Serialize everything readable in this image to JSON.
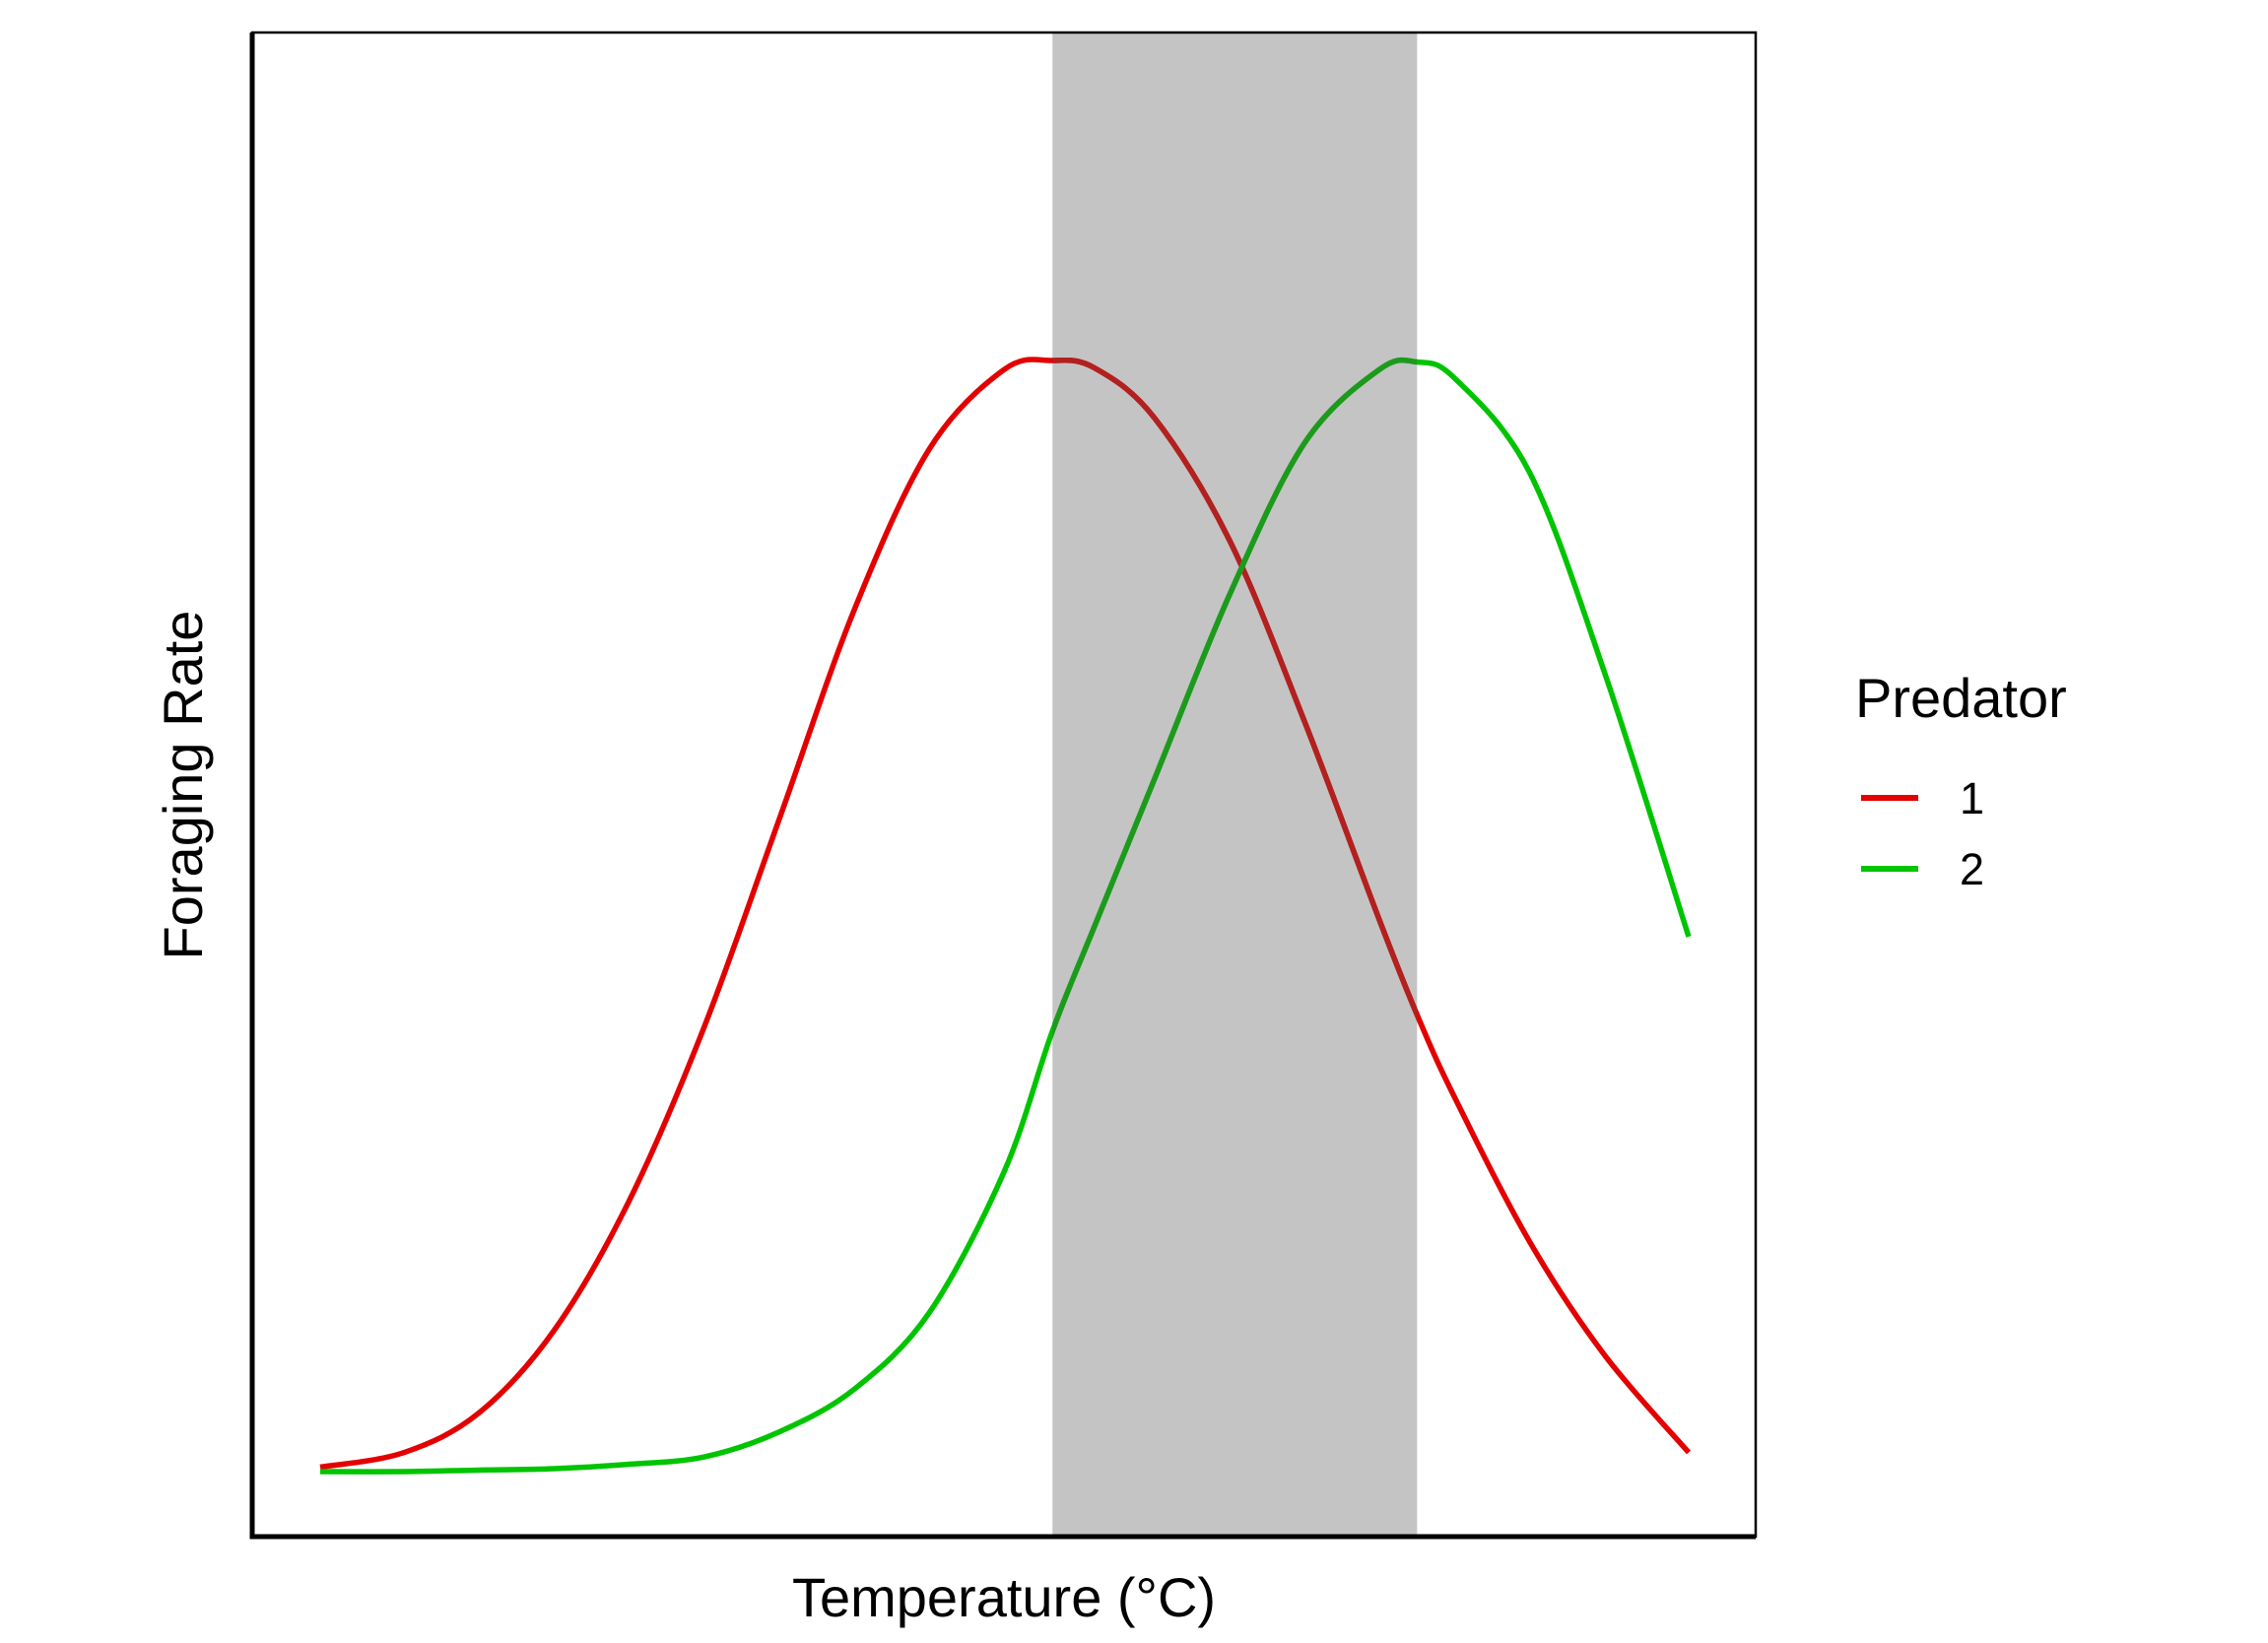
{
  "chart_data": {
    "type": "line",
    "title": "",
    "xlabel": "Temperature (°C)",
    "ylabel": "Foraging Rate",
    "xlim": [
      0,
      100
    ],
    "ylim": [
      0,
      100
    ],
    "x_ticks_shown": false,
    "y_ticks_shown": false,
    "grid": false,
    "legend": {
      "title": "Predator",
      "position": "right"
    },
    "shaded_region": {
      "x_start": 53.2,
      "x_end": 77.5,
      "color": "#c4c4c4"
    },
    "series": [
      {
        "name": "1",
        "color": "#e30000",
        "shaded_color": "#b22020",
        "x": [
          4.4,
          10,
          15,
          20,
          25,
          30,
          35,
          40,
          45,
          50,
          53.2,
          56,
          60,
          65,
          70,
          75,
          77.5,
          80,
          85,
          90,
          95.6
        ],
        "y": [
          5.1,
          6.1,
          8.8,
          14.4,
          23.2,
          35.0,
          49.1,
          63.3,
          74.2,
          79.6,
          80.2,
          79.7,
          76.3,
          68.0,
          55.7,
          42.2,
          35.8,
          30.2,
          20.4,
          12.7,
          6.1
        ]
      },
      {
        "name": "2",
        "color": "#00c400",
        "shaded_color": "#1d9a1d",
        "x": [
          4.4,
          10,
          15,
          20,
          25,
          30,
          35,
          40,
          45,
          50,
          53.2,
          56,
          60,
          65,
          70,
          75,
          77.5,
          80,
          85,
          90,
          95.6
        ],
        "y": [
          4.8,
          4.8,
          4.9,
          5.0,
          5.3,
          5.8,
          7.5,
          10.4,
          15.6,
          25.2,
          34.7,
          41.8,
          51.8,
          64.3,
          74.6,
          79.6,
          80.1,
          79.0,
          72.6,
          59.0,
          41.1
        ]
      }
    ]
  }
}
